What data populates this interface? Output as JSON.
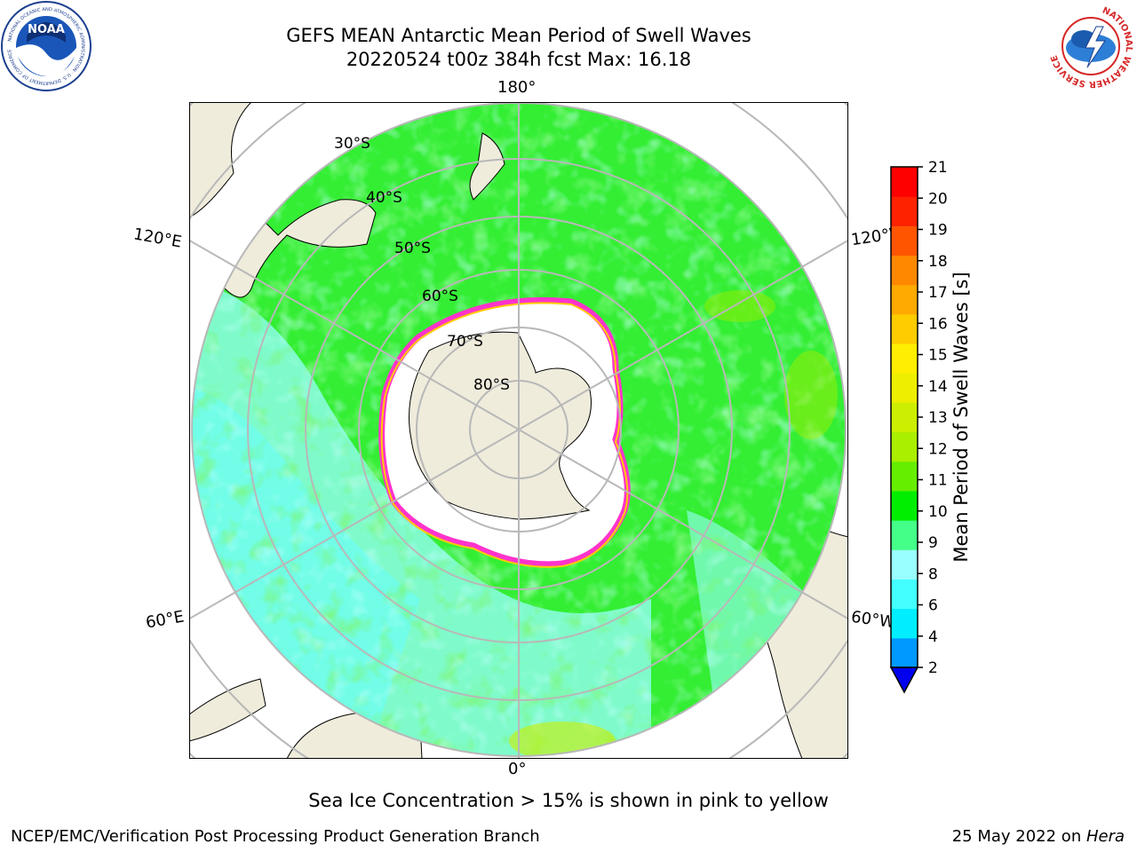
{
  "title": {
    "line1": "GEFS MEAN Antarctic Mean Period of Swell Waves",
    "line2": "20220524 t00z 384h fcst   Max: 16.18"
  },
  "logos": {
    "noaa": {
      "text": "NOAA",
      "ring_text": "NATIONAL OCEANIC AND ATMOSPHERIC ADMINISTRATION · U.S. DEPARTMENT OF COMMERCE"
    },
    "nws": {
      "ring_text": "NATIONAL WEATHER SERVICE"
    }
  },
  "map": {
    "projection": "south polar stereographic",
    "longitude_labels": {
      "top": "180°",
      "bottom": "0°",
      "upper_left": "120°E",
      "lower_left": "60°E",
      "upper_right": "120°W",
      "lower_right": "60°W"
    },
    "latitude_labels": [
      "30°S",
      "40°S",
      "50°S",
      "60°S",
      "70°S",
      "80°S"
    ],
    "colors": {
      "ocean_field": "#33ee33",
      "swell_low": "#99ffff",
      "swell_mid": "#00ff99",
      "land": "#efecdc",
      "ice_edge": "#ff33cc",
      "ice_yellow": "#ffcc00",
      "grid": "#b8b8b8"
    }
  },
  "colorbar": {
    "label": "Mean Period of Swell Waves [s]",
    "ticks": [
      "2",
      "4",
      "6",
      "8",
      "9",
      "10",
      "11",
      "12",
      "13",
      "14",
      "15",
      "16",
      "17",
      "18",
      "19",
      "20",
      "21"
    ],
    "colors": [
      "#0033ff",
      "#0099ff",
      "#00eeff",
      "#44ffff",
      "#99ffff",
      "#44ff88",
      "#00ee00",
      "#66ee00",
      "#aaee00",
      "#ccee00",
      "#eeee00",
      "#ffee00",
      "#ffcc00",
      "#ffaa00",
      "#ff8800",
      "#ff5500",
      "#ff2200",
      "#ff0000"
    ],
    "extend_color": "#0000ee"
  },
  "note": "Sea Ice Concentration > 15% is shown in pink to yellow",
  "footer": {
    "left": "NCEP/EMC/Verification Post Processing Product Generation Branch",
    "right_prefix": "25 May 2022 on ",
    "right_host": "Hera"
  }
}
